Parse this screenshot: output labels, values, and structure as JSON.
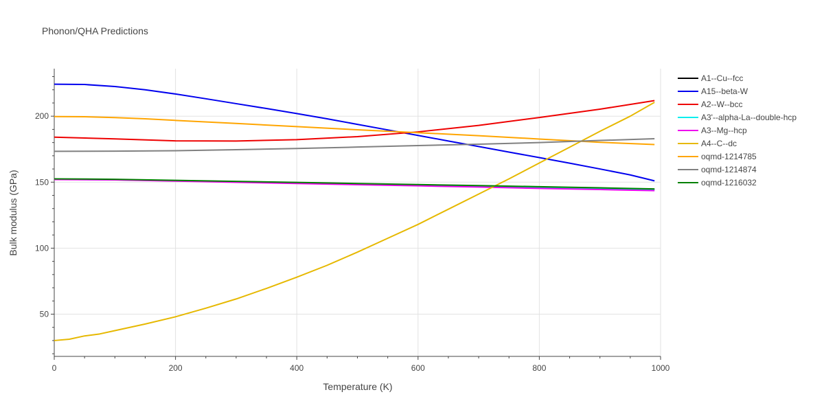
{
  "chart_data": {
    "type": "line",
    "title": "Phonon/QHA Predictions",
    "xlabel": "Temperature (K)",
    "ylabel": "Bulk modulus (GPa)",
    "xlim": [
      0,
      1000
    ],
    "ylim": [
      18,
      236
    ],
    "x_ticks": [
      "0",
      "200",
      "400",
      "600",
      "800",
      "1000"
    ],
    "y_ticks": [
      "50",
      "100",
      "150",
      "200"
    ],
    "grid": true,
    "legend_position": "right",
    "series": [
      {
        "name": "A1--Cu--fcc",
        "color": "#000000",
        "x": [
          0,
          100,
          200,
          300,
          400,
          500,
          600,
          700,
          800,
          900,
          990
        ],
        "y": [
          152.3,
          152.0,
          151.2,
          150.4,
          149.6,
          148.8,
          147.8,
          147.0,
          146.2,
          145.4,
          144.6
        ]
      },
      {
        "name": "A15--beta-W",
        "color": "#0000ee",
        "x": [
          0,
          50,
          100,
          150,
          200,
          250,
          300,
          350,
          400,
          450,
          500,
          550,
          600,
          650,
          700,
          750,
          800,
          850,
          900,
          950,
          990
        ],
        "y": [
          224.2,
          224.0,
          222.5,
          220.0,
          216.8,
          213.2,
          209.5,
          205.8,
          202.0,
          198.0,
          193.8,
          189.6,
          185.4,
          181.2,
          177.0,
          172.8,
          168.6,
          164.4,
          160.0,
          155.5,
          151.0
        ]
      },
      {
        "name": "A2--W--bcc",
        "color": "#ee0000",
        "x": [
          0,
          100,
          200,
          300,
          400,
          500,
          600,
          700,
          800,
          900,
          990
        ],
        "y": [
          184.1,
          182.8,
          181.3,
          181.2,
          182.2,
          184.5,
          188.1,
          193.0,
          199.0,
          205.3,
          211.8
        ]
      },
      {
        "name": "A3'--alpha-La--double-hcp",
        "color": "#00eeee",
        "x": [
          0,
          100,
          200,
          300,
          400,
          500,
          600,
          700,
          800,
          900,
          990
        ],
        "y": [
          152.1,
          151.8,
          151.0,
          150.2,
          149.4,
          148.6,
          147.6,
          146.8,
          146.0,
          145.2,
          144.4
        ]
      },
      {
        "name": "A3--Mg--hcp",
        "color": "#ee00ee",
        "x": [
          0,
          100,
          200,
          300,
          400,
          500,
          600,
          700,
          800,
          900,
          990
        ],
        "y": [
          152.0,
          151.7,
          150.8,
          149.9,
          149.0,
          148.1,
          147.2,
          146.3,
          145.3,
          144.4,
          143.6
        ]
      },
      {
        "name": "A4--C--dc",
        "color": "#e6b800",
        "x": [
          0,
          25,
          50,
          75,
          100,
          150,
          200,
          250,
          300,
          350,
          400,
          450,
          500,
          550,
          600,
          650,
          700,
          750,
          800,
          850,
          900,
          950,
          990
        ],
        "y": [
          30.0,
          31.0,
          33.5,
          35.0,
          37.5,
          42.5,
          48.0,
          54.5,
          61.5,
          69.5,
          78.0,
          87.0,
          97.0,
          107.5,
          118.0,
          129.5,
          141.0,
          152.5,
          164.5,
          176.5,
          188.5,
          200.0,
          210.5
        ]
      },
      {
        "name": "oqmd-1214785",
        "color": "#ffa500",
        "x": [
          0,
          50,
          100,
          150,
          200,
          300,
          400,
          500,
          600,
          700,
          800,
          900,
          990
        ],
        "y": [
          199.7,
          199.6,
          198.9,
          198.0,
          196.8,
          194.5,
          192.1,
          189.7,
          187.5,
          185.2,
          182.7,
          180.2,
          178.5
        ]
      },
      {
        "name": "oqmd-1214874",
        "color": "#808080",
        "x": [
          0,
          100,
          200,
          300,
          400,
          500,
          600,
          700,
          800,
          900,
          990
        ],
        "y": [
          173.4,
          173.5,
          173.8,
          174.6,
          175.5,
          176.6,
          177.7,
          178.8,
          180.0,
          181.6,
          182.9
        ]
      },
      {
        "name": "oqmd-1216032",
        "color": "#008000",
        "x": [
          0,
          100,
          200,
          300,
          400,
          500,
          600,
          700,
          800,
          900,
          990
        ],
        "y": [
          152.5,
          152.2,
          151.4,
          150.6,
          149.8,
          149.0,
          148.2,
          147.4,
          146.6,
          145.7,
          144.9
        ]
      }
    ]
  }
}
